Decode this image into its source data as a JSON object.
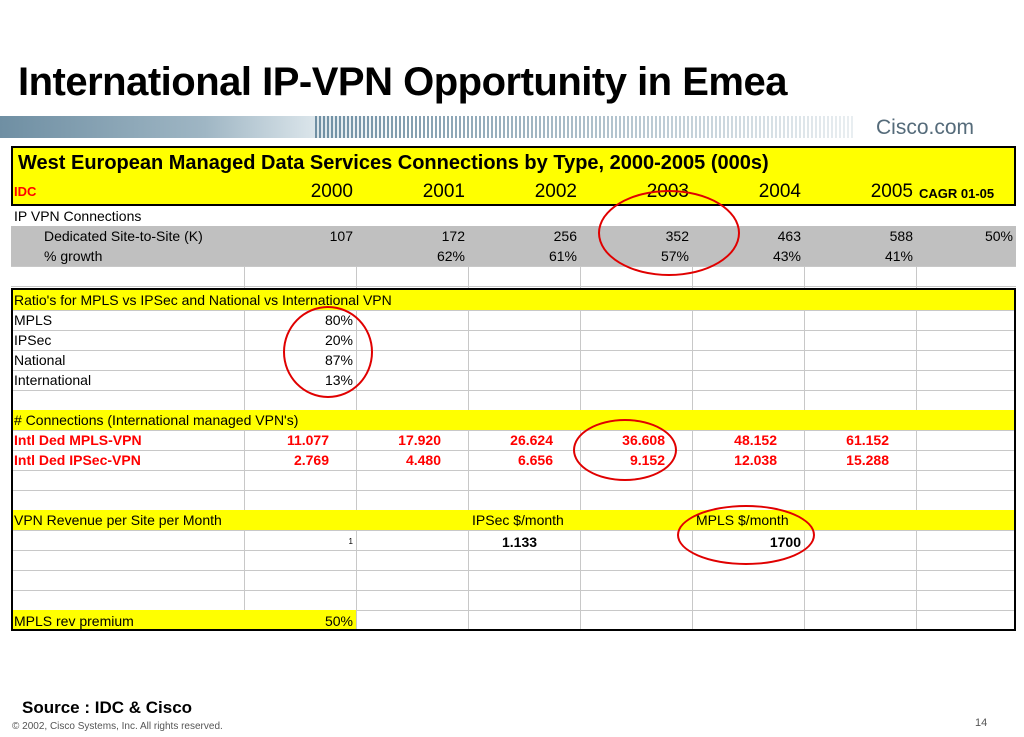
{
  "slide": {
    "title": "International IP-VPN Opportunity in Emea",
    "brand": "Cisco.com",
    "source": "Source : IDC & Cisco",
    "copyright": "© 2002, Cisco Systems, Inc. All rights reserved.",
    "page_number": "14"
  },
  "table": {
    "title": "West European Managed Data Services Connections by Type, 2000-2005 (000s)",
    "header": {
      "label": "IDC",
      "years": [
        "2000",
        "2001",
        "2002",
        "2003",
        "2004",
        "2005"
      ],
      "cagr": "CAGR 01-05"
    },
    "ipvpn_label": "IP VPN Connections",
    "dedicated": {
      "label": "Dedicated Site-to-Site (K)",
      "values": [
        "107",
        "172",
        "256",
        "352",
        "463",
        "588"
      ],
      "cagr": "50%"
    },
    "growth": {
      "label": "% growth",
      "values": [
        "",
        "62%",
        "61%",
        "57%",
        "43%",
        "41%"
      ]
    },
    "ratio_title": "Ratio's for MPLS vs IPSec and National vs International VPN",
    "ratios": [
      {
        "label": "MPLS",
        "value": "80%"
      },
      {
        "label": "IPSec",
        "value": "20%"
      },
      {
        "label": "National",
        "value": "87%"
      },
      {
        "label": "International",
        "value": "13%"
      }
    ],
    "connections_title": "# Connections (International managed VPN's)",
    "connections": [
      {
        "label": "Intl Ded MPLS-VPN",
        "values": [
          "11.077",
          "17.920",
          "26.624",
          "36.608",
          "48.152",
          "61.152"
        ]
      },
      {
        "label": "Intl Ded IPSec-VPN",
        "values": [
          "2.769",
          "4.480",
          "6.656",
          "9.152",
          "12.038",
          "15.288"
        ]
      }
    ],
    "revenue": {
      "title": "VPN Revenue per Site per Month",
      "ipsec_label": "IPSec $/month",
      "mpls_label": "MPLS $/month",
      "footnote": "1",
      "ipsec_value": "1.133",
      "mpls_value": "1700"
    },
    "premium": {
      "label": "MPLS rev premium",
      "value": "50%"
    }
  },
  "colors": {
    "highlight": "#ffff00",
    "shaded": "#c0c0c0",
    "accent_red": "#ff0000",
    "circle": "#e00000"
  }
}
